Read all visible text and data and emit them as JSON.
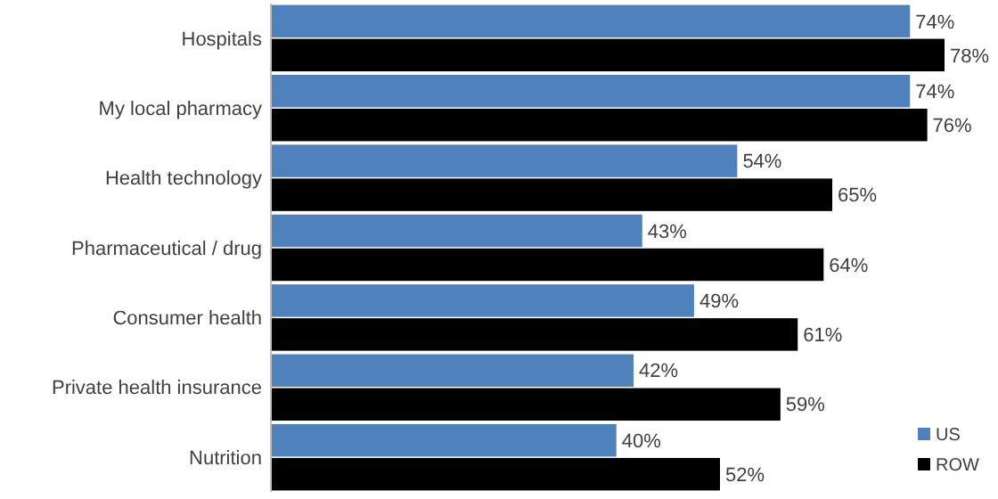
{
  "chart_data": {
    "type": "bar",
    "orientation": "horizontal",
    "categories": [
      "Hospitals",
      "My local pharmacy",
      "Health technology",
      "Pharmaceutical / drug",
      "Consumer health",
      "Private health insurance",
      "Nutrition"
    ],
    "series": [
      {
        "name": "US",
        "color": "#4f81bd",
        "values": [
          74,
          74,
          54,
          43,
          49,
          42,
          40
        ],
        "value_labels": [
          "74%",
          "74%",
          "54%",
          "43%",
          "49%",
          "42%",
          "40%"
        ]
      },
      {
        "name": "ROW",
        "color": "#000000",
        "values": [
          78,
          76,
          65,
          64,
          61,
          59,
          52
        ],
        "value_labels": [
          "78%",
          "76%",
          "65%",
          "64%",
          "61%",
          "59%",
          "52%"
        ]
      }
    ],
    "legend": "bottom right"
  }
}
